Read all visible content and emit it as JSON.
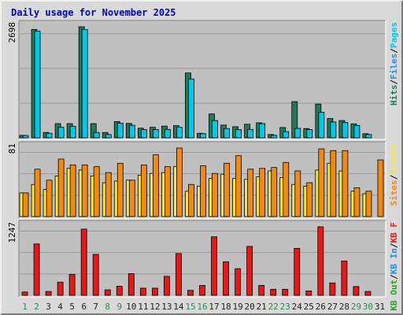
{
  "chart_data": {
    "type": "bar",
    "title": "Daily usage for November 2025",
    "colors": {
      "title": "#0000cc",
      "pages": "#1f7a5a",
      "files": "#00c8e8",
      "hits": "#1f7a5a",
      "visits": "#f5e63a",
      "sites": "#f08a10",
      "kb_in": "#2a8ae8",
      "kb_out": "#2aa02a",
      "kbf": "#e81818",
      "weekend_day": "#2a8a5a",
      "weekday": "#222222"
    },
    "days": [
      "1",
      "2",
      "3",
      "4",
      "5",
      "6",
      "7",
      "8",
      "9",
      "10",
      "11",
      "12",
      "13",
      "14",
      "15",
      "16",
      "17",
      "18",
      "19",
      "20",
      "21",
      "22",
      "23",
      "24",
      "25",
      "26",
      "27",
      "28",
      "29",
      "30",
      "31"
    ],
    "weekend_days": [
      "1",
      "2",
      "8",
      "9",
      "15",
      "16",
      "22",
      "23",
      "29",
      "30"
    ],
    "panels": [
      {
        "max_label": "2698",
        "ylim": [
          0,
          2698
        ],
        "legend": [
          {
            "text": "Pages",
            "color": "#00c8e8"
          },
          {
            "text": "Files",
            "color": "#2a8ae8"
          },
          {
            "text": "Hits",
            "color": "#1f7a5a"
          }
        ],
        "series": [
          {
            "name": "Hits",
            "color": "#1f7a5a",
            "values": [
              60,
              2633,
              130,
              345,
              345,
              2698,
              345,
              130,
              395,
              350,
              235,
              255,
              285,
              295,
              1575,
              110,
              580,
              310,
              270,
              330,
              365,
              80,
              250,
              880,
              225,
              820,
              470,
              420,
              340,
              100,
              0
            ]
          },
          {
            "name": "Files",
            "color": "#00c8e8",
            "values": [
              55,
              2590,
              110,
              255,
              280,
              2630,
              130,
              80,
              355,
              305,
              200,
              200,
              205,
              255,
              1430,
              100,
              420,
              225,
              200,
              205,
              345,
              60,
              150,
              230,
              200,
              620,
              385,
              370,
              300,
              80,
              0
            ]
          }
        ]
      },
      {
        "max_label": "81",
        "ylim": [
          0,
          81
        ],
        "legend": [
          {
            "text": "Visits",
            "color": "#f5e63a"
          },
          {
            "text": "Sites",
            "color": "#f08a10"
          }
        ],
        "series": [
          {
            "name": "Visits",
            "color": "#f5e63a",
            "values": [
              28,
              38,
              32,
              48,
              57,
              55,
              48,
              40,
              42,
              43,
              49,
              51,
              52,
              59,
              30,
              36,
              45,
              50,
              45,
              44,
              47,
              54,
              46,
              38,
              36,
              55,
              63,
              54,
              30,
              27,
              0
            ]
          },
          {
            "name": "Sites",
            "color": "#f08a10",
            "values": [
              28,
              56,
              43,
              68,
              61,
              61,
              59,
              52,
              63,
              43,
              61,
              73,
              59,
              81,
              38,
              60,
              51,
              63,
              72,
              56,
              57,
              58,
              64,
              54,
              40,
              80,
              78,
              78,
              34,
              30,
              67
            ]
          }
        ]
      },
      {
        "max_label": "1247",
        "ylim": [
          0,
          1247
        ],
        "legend": [
          {
            "text": "KB F",
            "color": "#e81818"
          },
          {
            "text": "KB In",
            "color": "#2a8ae8"
          },
          {
            "text": "KB Out",
            "color": "#2aa02a"
          }
        ],
        "series": [
          {
            "name": "KB F",
            "color": "#e81818",
            "values": [
              60,
              935,
              70,
              240,
              380,
              1205,
              745,
              100,
              165,
              395,
              130,
              130,
              345,
              760,
              90,
              180,
              1065,
              610,
              485,
              890,
              180,
              110,
              110,
              855,
              80,
              1247,
              225,
              625,
              160,
              70,
              0
            ]
          }
        ]
      }
    ]
  }
}
